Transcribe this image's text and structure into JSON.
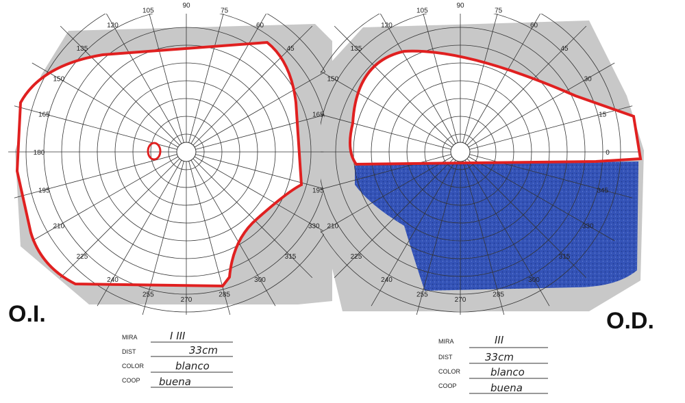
{
  "left_eye": {
    "label": "O.I.",
    "angle_labels": [
      "135",
      "120",
      "105",
      "90",
      "75",
      "60",
      "45",
      "150",
      "165",
      "180",
      "195",
      "210",
      "225",
      "240",
      "255",
      "270",
      "285",
      "300",
      "315",
      "330",
      "345"
    ],
    "form": {
      "mira_label": "MIRA",
      "mira_value": "I III",
      "dist_label": "DIST",
      "dist_value": "33cm",
      "color_label": "COLOR",
      "color_value": "blanco",
      "coop_label": "COOP",
      "coop_value": "buena"
    }
  },
  "right_eye": {
    "label": "O.D.",
    "angle_labels": [
      "135",
      "120",
      "105",
      "90",
      "75",
      "60",
      "45",
      "30",
      "15",
      "0",
      "345",
      "330",
      "315",
      "300",
      "285",
      "270",
      "255",
      "240",
      "225",
      "210",
      "195",
      "165",
      "150"
    ],
    "form": {
      "mira_label": "MIRA",
      "mira_value": "III",
      "dist_label": "DIST",
      "dist_value": "33cm",
      "color_label": "COLOR",
      "color_value": "blanco",
      "coop_label": "COOP",
      "coop_value": "buena"
    }
  },
  "colors": {
    "chart_gray": "#c8c8c8",
    "grid": "#333333",
    "isopter": "#e02020",
    "defect_fill": "#1e3fa8"
  }
}
